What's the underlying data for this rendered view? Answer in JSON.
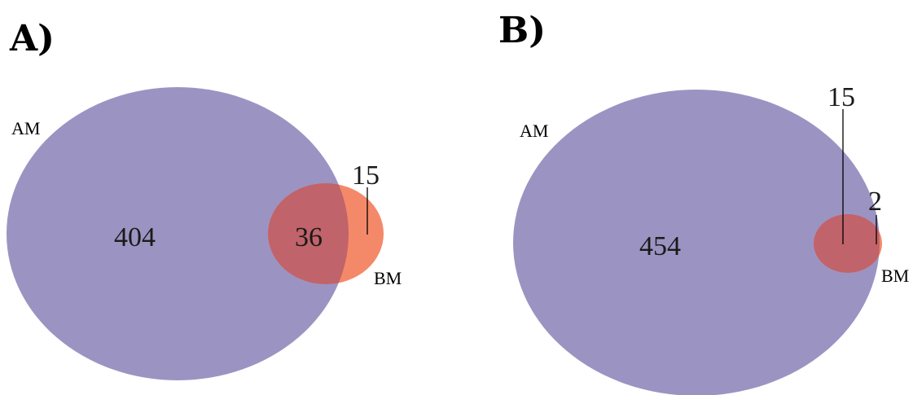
{
  "colors": {
    "am_fill": "#9b94c2",
    "bm_fill": "#f4896a",
    "overlap_fill": "#c1636a"
  },
  "panels": [
    {
      "label": "A)",
      "set_a_label": "AM",
      "set_b_label": "BM",
      "only_a": "404",
      "overlap": "36",
      "only_b": "15"
    },
    {
      "label": "B)",
      "set_a_label": "AM",
      "set_b_label": "BM",
      "only_a": "454",
      "overlap": "15",
      "only_b": "2"
    }
  ]
}
